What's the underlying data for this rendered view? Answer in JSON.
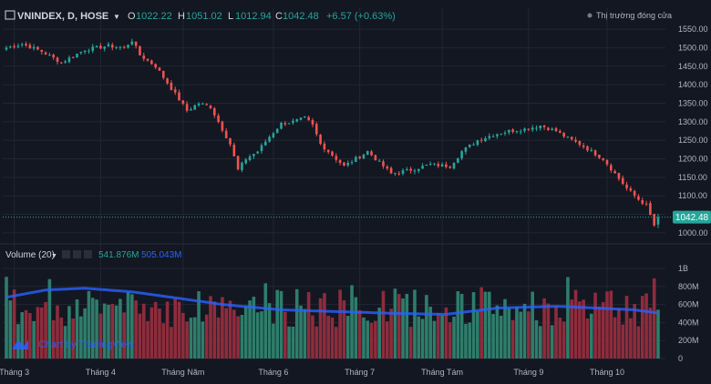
{
  "header": {
    "symbol": "VNINDEX, D, HOSE",
    "o_label": "O",
    "o_value": "1022.22",
    "h_label": "H",
    "h_value": "1051.02",
    "l_label": "L",
    "l_value": "1012.94",
    "c_label": "C",
    "c_value": "1042.48",
    "change": "+6.57 (+0.63%)",
    "market_status": "Thị trường đóng cửa",
    "last_price_tag": "1042.48"
  },
  "volume_panel": {
    "label": "Volume (20)",
    "value_1": "541.876M",
    "value_2": "505.043M"
  },
  "branding": "Chart by TradingView",
  "colors": {
    "background": "#131722",
    "up": "#26a69a",
    "down": "#ef5350",
    "up_volume": "#2e7d6b",
    "down_volume": "#8e2c3c",
    "ma_line": "#2962ff",
    "text": "#b2b5be",
    "grid": "#222633"
  },
  "chart_data": [
    {
      "type": "candlestick",
      "title": "VNINDEX, D, HOSE",
      "x_labels": [
        "Tháng 3",
        "Tháng 4",
        "Tháng Năm",
        "Tháng 6",
        "Tháng 7",
        "Tháng Tám",
        "Tháng 9",
        "Tháng 10"
      ],
      "y_ticks": [
        1000,
        1050,
        1100,
        1150,
        1200,
        1250,
        1300,
        1350,
        1400,
        1450,
        1500,
        1550
      ],
      "ylim": [
        985,
        1560
      ],
      "last_price": 1042.48,
      "anchors": [
        [
          0,
          1500
        ],
        [
          4,
          1510
        ],
        [
          9,
          1490
        ],
        [
          14,
          1460
        ],
        [
          20,
          1495
        ],
        [
          26,
          1505
        ],
        [
          30,
          1500
        ],
        [
          32,
          1520
        ],
        [
          34,
          1480
        ],
        [
          38,
          1450
        ],
        [
          42,
          1390
        ],
        [
          46,
          1330
        ],
        [
          49,
          1350
        ],
        [
          52,
          1340
        ],
        [
          54,
          1300
        ],
        [
          57,
          1240
        ],
        [
          59,
          1170
        ],
        [
          61,
          1200
        ],
        [
          64,
          1220
        ],
        [
          67,
          1260
        ],
        [
          70,
          1295
        ],
        [
          73,
          1300
        ],
        [
          76,
          1310
        ],
        [
          78,
          1290
        ],
        [
          80,
          1240
        ],
        [
          83,
          1210
        ],
        [
          86,
          1180
        ],
        [
          89,
          1200
        ],
        [
          92,
          1220
        ],
        [
          95,
          1190
        ],
        [
          98,
          1160
        ],
        [
          103,
          1170
        ],
        [
          108,
          1185
        ],
        [
          113,
          1180
        ],
        [
          116,
          1220
        ],
        [
          120,
          1250
        ],
        [
          124,
          1265
        ],
        [
          128,
          1275
        ],
        [
          132,
          1280
        ],
        [
          136,
          1290
        ],
        [
          140,
          1275
        ],
        [
          143,
          1255
        ],
        [
          146,
          1240
        ],
        [
          149,
          1220
        ],
        [
          152,
          1200
        ],
        [
          155,
          1160
        ],
        [
          158,
          1120
        ],
        [
          161,
          1090
        ],
        [
          163,
          1075
        ],
        [
          165,
          1020
        ],
        [
          166,
          1042.48
        ]
      ]
    },
    {
      "type": "bar",
      "title": "Volume (20)",
      "y_ticks": [
        "0",
        "200M",
        "400M",
        "600M",
        "800M",
        "1B"
      ],
      "ylim": [
        0,
        1050
      ],
      "unit": "M",
      "moving_average": [
        [
          0,
          680
        ],
        [
          10,
          760
        ],
        [
          20,
          780
        ],
        [
          32,
          740
        ],
        [
          42,
          680
        ],
        [
          55,
          600
        ],
        [
          70,
          540
        ],
        [
          85,
          520
        ],
        [
          100,
          500
        ],
        [
          112,
          490
        ],
        [
          125,
          560
        ],
        [
          140,
          580
        ],
        [
          150,
          560
        ],
        [
          160,
          540
        ],
        [
          166,
          505
        ]
      ]
    }
  ]
}
